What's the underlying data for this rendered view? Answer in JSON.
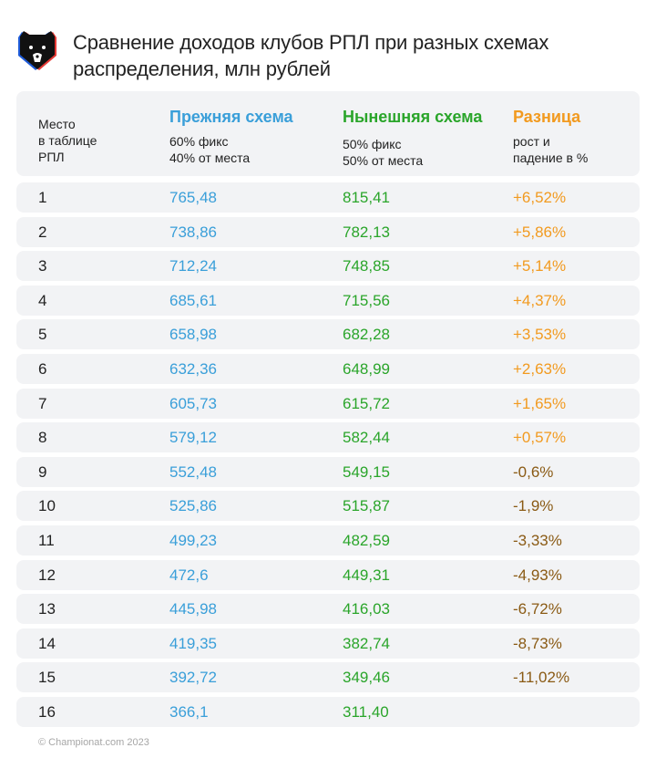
{
  "title": "Сравнение доходов клубов РПЛ при разных схемах распределения, млн рублей",
  "logo": {
    "icon": "rpl-bear-logo"
  },
  "colors": {
    "previous": "#3a9fd9",
    "current": "#2aa52a",
    "difference": "#f29a1f",
    "negative": "#8a5a14"
  },
  "header": {
    "place": [
      "Место",
      "в таблице",
      "РПЛ"
    ],
    "previous": {
      "title": "Прежняя схема",
      "sub": [
        "60% фикс",
        "40% от места"
      ]
    },
    "current": {
      "title": "Нынешняя схема",
      "sub": [
        "50% фикс",
        "50% от места"
      ]
    },
    "difference": {
      "title": "Разница",
      "sub": [
        "рост и",
        "падение в %"
      ]
    }
  },
  "rows": [
    {
      "place": "1",
      "previous": "765,48",
      "current": "815,41",
      "difference": "+6,52%"
    },
    {
      "place": "2",
      "previous": "738,86",
      "current": "782,13",
      "difference": "+5,86%"
    },
    {
      "place": "3",
      "previous": "712,24",
      "current": "748,85",
      "difference": "+5,14%"
    },
    {
      "place": "4",
      "previous": "685,61",
      "current": "715,56",
      "difference": "+4,37%"
    },
    {
      "place": "5",
      "previous": "658,98",
      "current": "682,28",
      "difference": "+3,53%"
    },
    {
      "place": "6",
      "previous": "632,36",
      "current": "648,99",
      "difference": "+2,63%"
    },
    {
      "place": "7",
      "previous": "605,73",
      "current": "615,72",
      "difference": "+1,65%"
    },
    {
      "place": "8",
      "previous": "579,12",
      "current": "582,44",
      "difference": "+0,57%"
    },
    {
      "place": "9",
      "previous": "552,48",
      "current": "549,15",
      "difference": "-0,6%"
    },
    {
      "place": "10",
      "previous": "525,86",
      "current": "515,87",
      "difference": "-1,9%"
    },
    {
      "place": "11",
      "previous": "499,23",
      "current": "482,59",
      "difference": "-3,33%"
    },
    {
      "place": "12",
      "previous": "472,6",
      "current": "449,31",
      "difference": "-4,93%"
    },
    {
      "place": "13",
      "previous": "445,98",
      "current": "416,03",
      "difference": "-6,72%"
    },
    {
      "place": "14",
      "previous": "419,35",
      "current": "382,74",
      "difference": "-8,73%"
    },
    {
      "place": "15",
      "previous": "392,72",
      "current": "349,46",
      "difference": "-11,02%"
    },
    {
      "place": "16",
      "previous": "366,1",
      "current": "311,40",
      "difference": ""
    }
  ],
  "footer": "© Championat.com 2023"
}
